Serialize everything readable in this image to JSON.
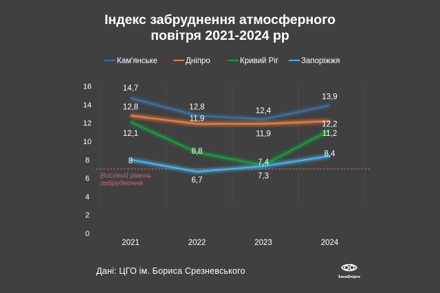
{
  "title_line1": "Індекс забруднення атмосферного",
  "title_line2": "повітря 2021-2024 рр",
  "source": "Дані: ЦГО ім. Бориса Срезневського",
  "brand": "SaveDnipro",
  "brand_icon": "eye-logo-icon",
  "colors": {
    "background": "#404040",
    "text": "#ffffff",
    "threshold": "#c46a6a"
  },
  "chart_data": {
    "type": "line",
    "title": "Індекс забруднення атмосферного повітря 2021-2024 рр",
    "x": [
      "2021",
      "2022",
      "2023",
      "2024"
    ],
    "ylim": [
      0,
      16
    ],
    "yticks": [
      "0",
      "2",
      "4",
      "6",
      "8",
      "10",
      "12",
      "14",
      "16"
    ],
    "grid": false,
    "legend_position": "top",
    "series": [
      {
        "name": "Кам'янське",
        "color": "#3f6f9e",
        "values": [
          14.7,
          12.8,
          12.4,
          13.9
        ],
        "labels": [
          "14,7",
          "12,8",
          "12,4",
          "13,9"
        ]
      },
      {
        "name": "Дніпро",
        "color": "#f07a3c",
        "values": [
          12.8,
          11.9,
          11.9,
          12.2
        ],
        "labels": [
          "12,8",
          "11,9",
          "11,9",
          "12,2"
        ]
      },
      {
        "name": "Кривий Ріг",
        "color": "#1d9a3e",
        "values": [
          12.1,
          8.8,
          7.4,
          11.2
        ],
        "labels": [
          "12,1",
          "8,8",
          "7,4",
          "11,2"
        ]
      },
      {
        "name": "Запоріжжя",
        "color": "#49b4ee",
        "values": [
          8,
          6.7,
          7.3,
          8.4
        ],
        "labels": [
          "8",
          "6,7",
          "7,3",
          "8,4"
        ]
      }
    ],
    "threshold": {
      "value": 7,
      "label_line1": "Високий рівень",
      "label_line2": "забруднення"
    }
  }
}
